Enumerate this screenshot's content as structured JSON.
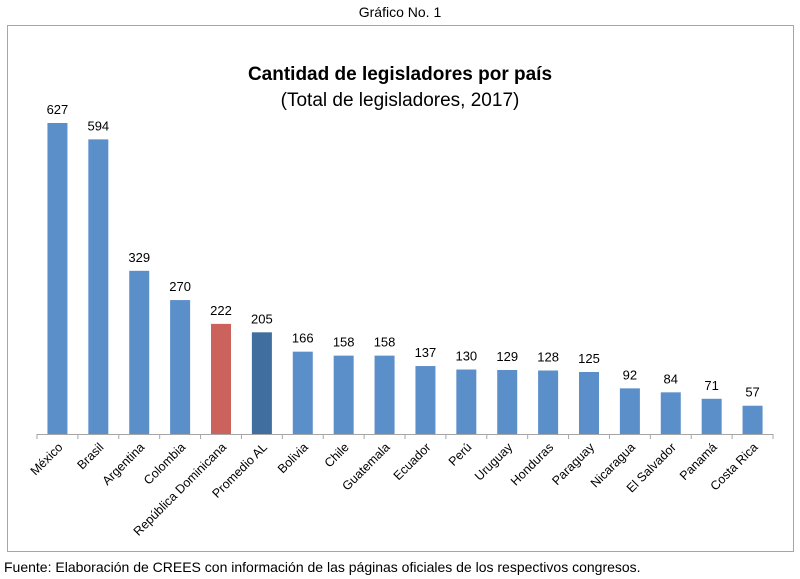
{
  "caption": "Gráfico No. 1",
  "source_note": "Fuente: Elaboración de CREES con información de las páginas oficiales de los respectivos congresos.",
  "chart_data": {
    "type": "bar",
    "title": "Cantidad de legisladores por país",
    "subtitle": "(Total de legisladores, 2017)",
    "xlabel": "",
    "ylabel": "",
    "ylim": [
      0,
      627
    ],
    "grid": false,
    "legend": "none",
    "categories": [
      "México",
      "Brasil",
      "Argentina",
      "Colombia",
      "República Dominicana",
      "Promedio AL",
      "Bolivia",
      "Chile",
      "Guatemala",
      "Ecuador",
      "Perú",
      "Uruguay",
      "Honduras",
      "Paraguay",
      "Nicaragua",
      "El Salvador",
      "Panamá",
      "Costa Rica"
    ],
    "values": [
      627,
      594,
      329,
      270,
      222,
      205,
      166,
      158,
      158,
      137,
      130,
      129,
      128,
      125,
      92,
      84,
      71,
      57
    ],
    "data_labels": [
      "627",
      "594",
      "329",
      "270",
      "222",
      "205",
      "166",
      "158",
      "158",
      "137",
      "130",
      "129",
      "128",
      "125",
      "92",
      "84",
      "71",
      "57"
    ],
    "colors": {
      "default": "#5b8fc9",
      "highlight": "#cc625c",
      "average": "#3f6e9f",
      "axis": "#a6a6a6"
    },
    "highlight_category": "República Dominicana",
    "average_category": "Promedio AL"
  }
}
